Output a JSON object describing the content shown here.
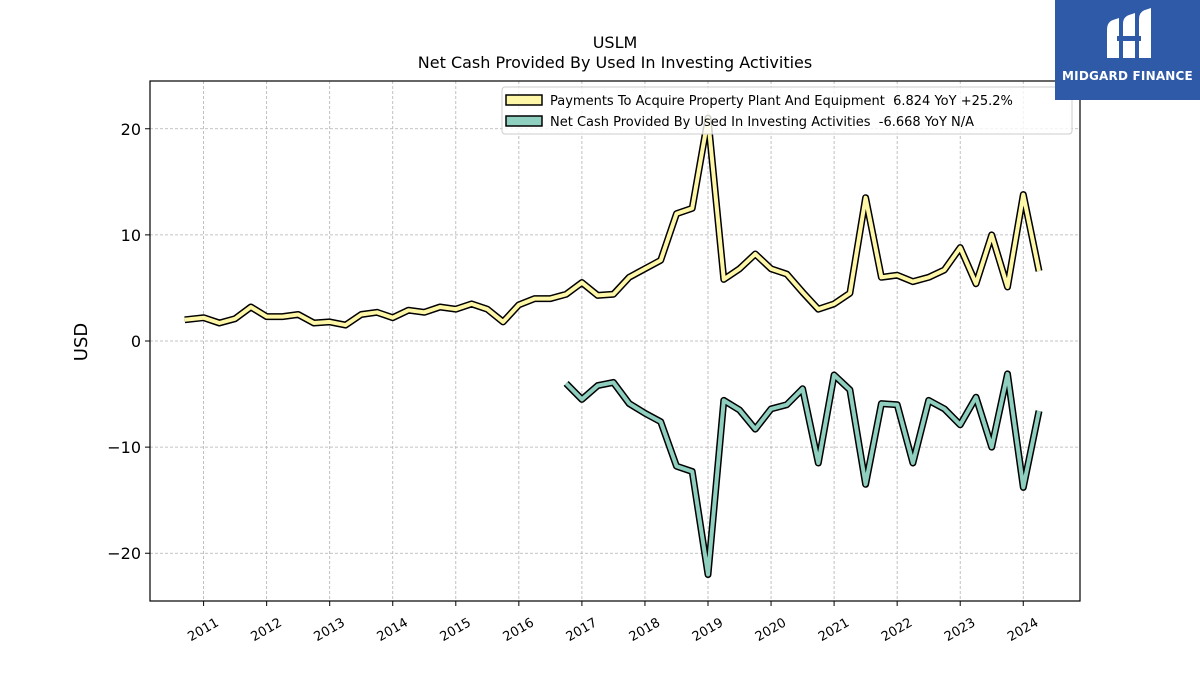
{
  "logo": {
    "text": "MIDGARD FINANCE",
    "background": "#2f5aa8",
    "icon": "midgard-m-logo-icon"
  },
  "chart_data": {
    "type": "line",
    "title": "USLM",
    "subtitle": "Net Cash Provided By Used In Investing Activities",
    "ylabel": "USD",
    "xlabel": "",
    "ylim": [
      -24.5,
      24.5
    ],
    "xlim": [
      2010.15,
      2024.9
    ],
    "yticks": [
      -20,
      -10,
      0,
      10,
      20
    ],
    "ytick_labels": [
      "−20",
      "−10",
      "0",
      "10",
      "20"
    ],
    "xticks": [
      2011,
      2012,
      2013,
      2014,
      2015,
      2016,
      2017,
      2018,
      2019,
      2020,
      2021,
      2022,
      2023,
      2024
    ],
    "xtick_labels": [
      "2011",
      "2012",
      "2013",
      "2014",
      "2015",
      "2016",
      "2017",
      "2018",
      "2019",
      "2020",
      "2021",
      "2022",
      "2023",
      "2024"
    ],
    "grid": true,
    "legend_position": "top-right",
    "series": [
      {
        "name": "Payments To Acquire Property Plant And Equipment",
        "legend_label": "Payments To Acquire Property Plant And Equipment  6.824 YoY +25.2%",
        "color": "#fff7a8",
        "x": [
          2010.7,
          2011.0,
          2011.25,
          2011.5,
          2011.75,
          2012.0,
          2012.25,
          2012.5,
          2012.75,
          2013.0,
          2013.25,
          2013.5,
          2013.75,
          2014.0,
          2014.25,
          2014.5,
          2014.75,
          2015.0,
          2015.25,
          2015.5,
          2015.75,
          2016.0,
          2016.25,
          2016.5,
          2016.75,
          2017.0,
          2017.25,
          2017.5,
          2017.75,
          2018.0,
          2018.25,
          2018.5,
          2018.75,
          2019.0,
          2019.25,
          2019.5,
          2019.75,
          2020.0,
          2020.25,
          2020.5,
          2020.75,
          2021.0,
          2021.25,
          2021.5,
          2021.75,
          2022.0,
          2022.25,
          2022.5,
          2022.75,
          2023.0,
          2023.25,
          2023.5,
          2023.75,
          2024.0,
          2024.25
        ],
        "values": [
          2.0,
          2.2,
          1.7,
          2.1,
          3.2,
          2.3,
          2.3,
          2.5,
          1.7,
          1.8,
          1.5,
          2.5,
          2.7,
          2.2,
          2.9,
          2.7,
          3.2,
          3.0,
          3.5,
          3.0,
          1.8,
          3.4,
          4.0,
          4.0,
          4.4,
          5.5,
          4.3,
          4.4,
          6.0,
          6.8,
          7.6,
          12.0,
          12.5,
          21.0,
          5.8,
          6.8,
          8.2,
          6.8,
          6.3,
          4.6,
          3.0,
          3.5,
          4.5,
          13.5,
          6.0,
          6.2,
          5.6,
          6.0,
          6.7,
          8.8,
          5.4,
          10.0,
          5.1,
          13.8,
          6.6
        ]
      },
      {
        "name": "Net Cash Provided By Used In Investing Activities",
        "legend_label": "Net Cash Provided By Used In Investing Activities  -6.668 YoY N/A",
        "color": "#8ecfc0",
        "x": [
          2016.75,
          2017.0,
          2017.25,
          2017.5,
          2017.75,
          2018.0,
          2018.25,
          2018.5,
          2018.75,
          2019.0,
          2019.25,
          2019.5,
          2019.75,
          2020.0,
          2020.25,
          2020.5,
          2020.75,
          2021.0,
          2021.25,
          2021.5,
          2021.75,
          2022.0,
          2022.25,
          2022.5,
          2022.75,
          2023.0,
          2023.25,
          2023.5,
          2023.75,
          2024.0,
          2024.25
        ],
        "values": [
          -4.0,
          -5.5,
          -4.2,
          -3.9,
          -5.9,
          -6.8,
          -7.6,
          -11.8,
          -12.3,
          -22.0,
          -5.6,
          -6.5,
          -8.3,
          -6.4,
          -6.0,
          -4.5,
          -11.5,
          -3.2,
          -4.6,
          -13.5,
          -5.9,
          -6.0,
          -11.5,
          -5.6,
          -6.4,
          -7.9,
          -5.3,
          -10.0,
          -3.1,
          -13.8,
          -6.6
        ]
      }
    ]
  }
}
